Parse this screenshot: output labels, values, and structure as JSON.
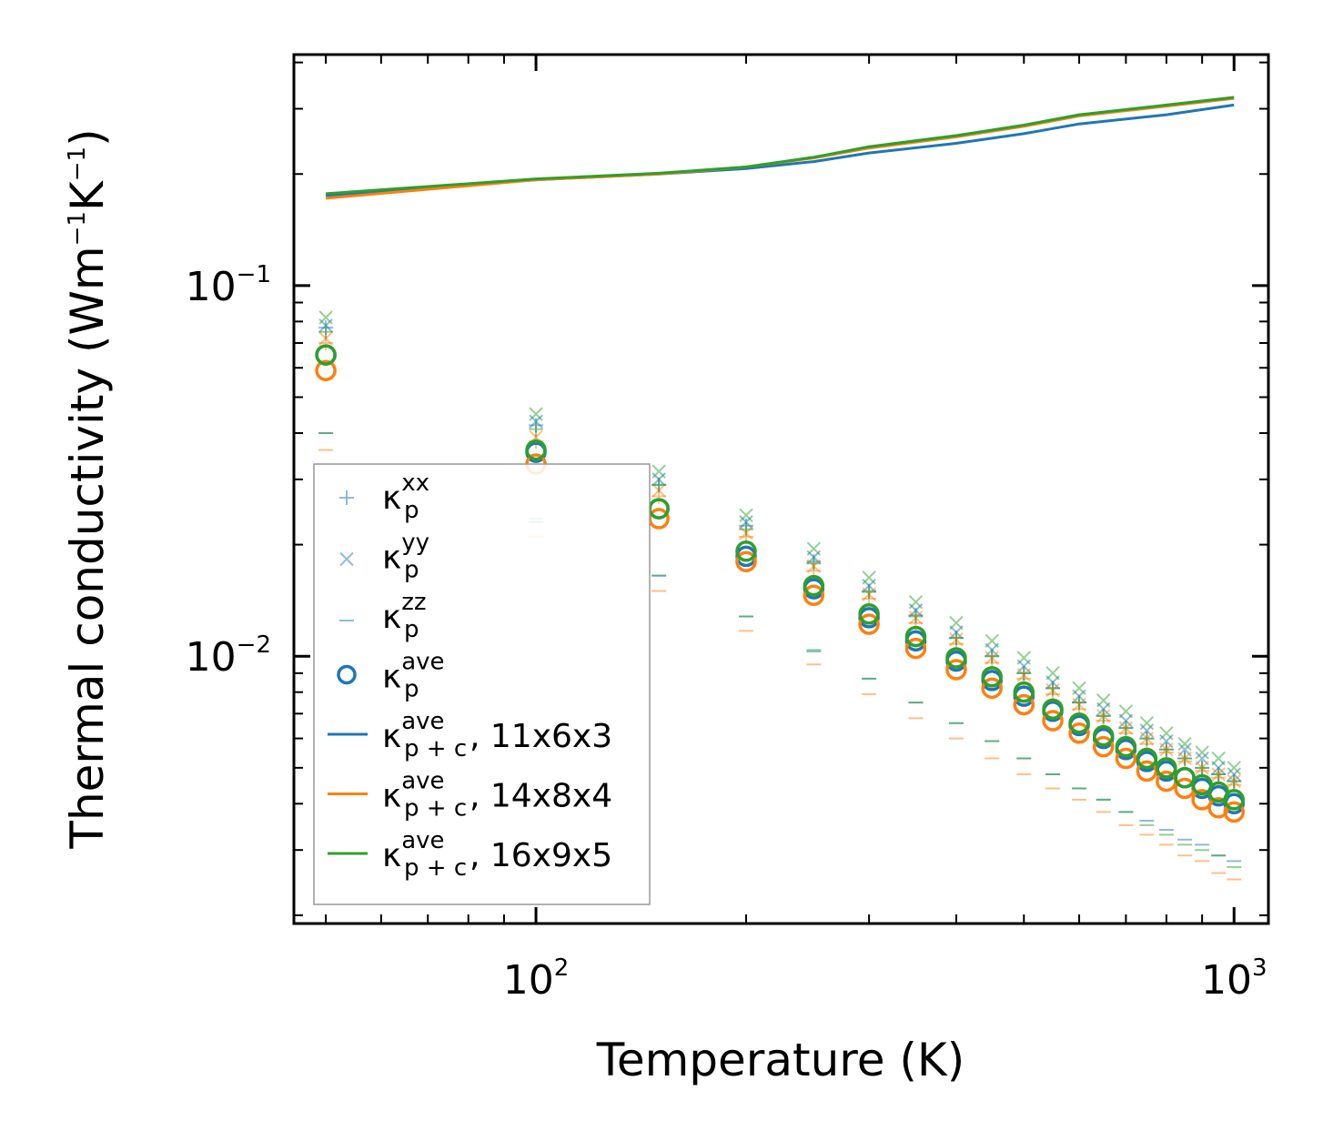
{
  "chart_data": {
    "type": "scatter",
    "title": "",
    "xlabel": "Temperature (K)",
    "ylabel": "Thermal conductivity (Wm",
    "ylabel_unit_parts": [
      "Wm",
      "−1",
      "K",
      "−1",
      ")"
    ],
    "xscale": "log",
    "yscale": "log",
    "xlim": [
      45,
      1120
    ],
    "ylim": [
      0.0019,
      0.42
    ],
    "x_ticks": [
      {
        "value": 100,
        "base": "10",
        "exp": "2"
      },
      {
        "value": 1000,
        "base": "10",
        "exp": "3"
      }
    ],
    "y_ticks": [
      {
        "value": 0.01,
        "base": "10",
        "exp": "−2"
      },
      {
        "value": 0.1,
        "base": "10",
        "exp": "−1"
      }
    ],
    "x": [
      50,
      100,
      150,
      200,
      250,
      300,
      350,
      400,
      450,
      500,
      550,
      600,
      650,
      700,
      750,
      800,
      850,
      900,
      950,
      1000
    ],
    "grids": [
      {
        "name": "11x6x3",
        "color": "#1f77b4",
        "kxx": [
          0.077,
          0.042,
          0.029,
          0.0225,
          0.018,
          0.015,
          0.0129,
          0.0112,
          0.01,
          0.009,
          0.0082,
          0.0075,
          0.0069,
          0.0064,
          0.006,
          0.0056,
          0.0053,
          0.005,
          0.0048,
          0.0046
        ],
        "kyy": [
          0.078,
          0.043,
          0.03,
          0.023,
          0.0185,
          0.0155,
          0.0133,
          0.0116,
          0.0104,
          0.0094,
          0.0085,
          0.0078,
          0.0072,
          0.0067,
          0.0063,
          0.0059,
          0.0056,
          0.0053,
          0.005,
          0.0048
        ],
        "kzz": [
          0.04,
          0.023,
          0.0165,
          0.0128,
          0.0103,
          0.0087,
          0.0075,
          0.0066,
          0.0059,
          0.0053,
          0.0048,
          0.0044,
          0.0041,
          0.0038,
          0.0036,
          0.0034,
          0.0032,
          0.0031,
          0.0029,
          0.0028
        ],
        "kave": [
          0.065,
          0.0355,
          0.025,
          0.0186,
          0.0152,
          0.0127,
          0.011,
          0.0097,
          0.0086,
          0.0078,
          0.0071,
          0.0065,
          0.006,
          0.0056,
          0.0052,
          0.0049,
          0.0047,
          0.0044,
          0.0042,
          0.004
        ],
        "kpc": [
          0.175,
          0.193,
          0.2,
          0.207,
          0.216,
          0.228,
          0.242,
          0.257,
          0.273,
          0.289,
          0.307
        ]
      },
      {
        "name": "14x8x4",
        "color": "#ff7f0e",
        "kxx": [
          0.07,
          0.038,
          0.027,
          0.021,
          0.017,
          0.0143,
          0.0123,
          0.0108,
          0.0096,
          0.0087,
          0.0079,
          0.0072,
          0.0067,
          0.0062,
          0.0058,
          0.0055,
          0.0052,
          0.0049,
          0.0047,
          0.0045
        ],
        "kyy": [
          0.072,
          0.039,
          0.028,
          0.0215,
          0.0175,
          0.0147,
          0.0127,
          0.0111,
          0.0099,
          0.0089,
          0.0081,
          0.0074,
          0.0069,
          0.0064,
          0.006,
          0.0056,
          0.0053,
          0.005,
          0.0048,
          0.0046
        ],
        "kzz": [
          0.036,
          0.021,
          0.015,
          0.0117,
          0.0095,
          0.0079,
          0.0068,
          0.006,
          0.0053,
          0.0048,
          0.0044,
          0.0041,
          0.0038,
          0.0035,
          0.0033,
          0.0031,
          0.0029,
          0.0028,
          0.0026,
          0.0025
        ],
        "kave": [
          0.059,
          0.033,
          0.0235,
          0.018,
          0.0146,
          0.0122,
          0.0105,
          0.0092,
          0.0082,
          0.0074,
          0.0067,
          0.0062,
          0.0057,
          0.0053,
          0.0049,
          0.0046,
          0.0044,
          0.0041,
          0.0039,
          0.0038
        ],
        "kpc": [
          0.172,
          0.193,
          0.2,
          0.209,
          0.221,
          0.235,
          0.252,
          0.269,
          0.287,
          0.305,
          0.32
        ]
      },
      {
        "name": "16x9x5",
        "color": "#2ca02c",
        "kxx": [
          0.075,
          0.041,
          0.029,
          0.022,
          0.0178,
          0.0149,
          0.0128,
          0.0112,
          0.01,
          0.009,
          0.0082,
          0.0075,
          0.0069,
          0.0064,
          0.006,
          0.0056,
          0.0053,
          0.005,
          0.0048,
          0.0046
        ],
        "kyy": [
          0.082,
          0.045,
          0.0315,
          0.024,
          0.0195,
          0.0163,
          0.014,
          0.0123,
          0.011,
          0.0099,
          0.009,
          0.0082,
          0.0076,
          0.0071,
          0.0066,
          0.0062,
          0.0058,
          0.0055,
          0.0053,
          0.005
        ],
        "kzz": [
          0.04,
          0.0235,
          0.0165,
          0.0128,
          0.0104,
          0.0087,
          0.0075,
          0.0066,
          0.0059,
          0.0053,
          0.0048,
          0.0044,
          0.0041,
          0.0038,
          0.0035,
          0.0033,
          0.0031,
          0.003,
          0.0029,
          0.0027
        ],
        "kave": [
          0.065,
          0.036,
          0.025,
          0.0192,
          0.0155,
          0.013,
          0.0113,
          0.0099,
          0.0088,
          0.008,
          0.0072,
          0.0066,
          0.0061,
          0.0057,
          0.0053,
          0.005,
          0.0047,
          0.0045,
          0.0043,
          0.0041
        ],
        "kpc": [
          0.177,
          0.194,
          0.201,
          0.209,
          0.222,
          0.237,
          0.254,
          0.271,
          0.289,
          0.307,
          0.322
        ]
      }
    ],
    "kpc_x": [
      50,
      100,
      150,
      200,
      250,
      300,
      400,
      500,
      600,
      800,
      1000
    ],
    "legend": {
      "position": "lower-left",
      "entries": [
        {
          "symbol": "plus",
          "color": "#1f77b4",
          "alpha": 0.5,
          "base": "κ",
          "sub": "p",
          "sup": "xx",
          "suffix": ""
        },
        {
          "symbol": "x",
          "color": "#1f77b4",
          "alpha": 0.5,
          "base": "κ",
          "sub": "p",
          "sup": "yy",
          "suffix": ""
        },
        {
          "symbol": "dash",
          "color": "#1f77b4",
          "alpha": 0.5,
          "base": "κ",
          "sub": "p",
          "sup": "zz",
          "suffix": ""
        },
        {
          "symbol": "circle",
          "color": "#1f77b4",
          "alpha": 1,
          "base": "κ",
          "sub": "p",
          "sup": "ave",
          "suffix": ""
        },
        {
          "symbol": "line",
          "color": "#1f77b4",
          "alpha": 1,
          "base": "κ",
          "sub": "p + c",
          "sup": "ave",
          "suffix": ", 11x6x3"
        },
        {
          "symbol": "line",
          "color": "#ff7f0e",
          "alpha": 1,
          "base": "κ",
          "sub": "p + c",
          "sup": "ave",
          "suffix": ", 14x8x4"
        },
        {
          "symbol": "line",
          "color": "#2ca02c",
          "alpha": 1,
          "base": "κ",
          "sub": "p + c",
          "sup": "ave",
          "suffix": ", 16x9x5"
        }
      ]
    }
  }
}
